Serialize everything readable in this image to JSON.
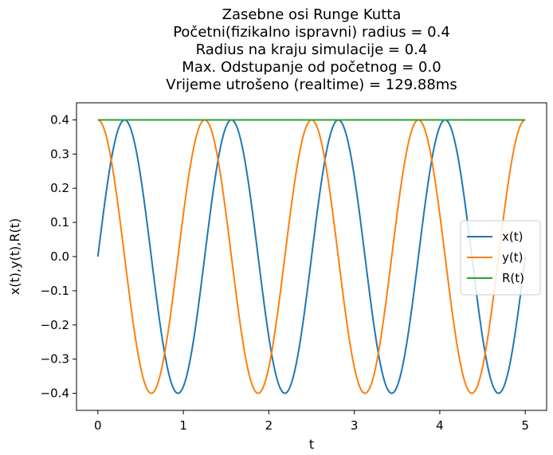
{
  "chart_data": {
    "type": "line",
    "title_lines": [
      "Zasebne osi Runge Kutta",
      "Početni(fizikalno ispravni) radius = 0.4",
      "Radius na kraju simulacije = 0.4",
      "Max. Odstupanje od početnog = 0.0",
      "Vrijeme utrošeno (realtime) = 129.88ms"
    ],
    "xlabel": "t",
    "ylabel": "x(t),y(t),R(t)",
    "xlim": [
      -0.25,
      5.25
    ],
    "ylim": [
      -0.45,
      0.45
    ],
    "xticks": [
      0,
      1,
      2,
      3,
      4,
      5
    ],
    "xtick_labels": [
      "0",
      "1",
      "2",
      "3",
      "4",
      "5"
    ],
    "yticks": [
      0.4,
      0.3,
      0.2,
      0.1,
      0.0,
      -0.1,
      -0.2,
      -0.3,
      -0.4
    ],
    "ytick_labels": [
      "0.4",
      "0.3",
      "0.2",
      "0.1",
      "0.0",
      "−0.1",
      "−0.2",
      "−0.3",
      "−0.4"
    ],
    "grid": false,
    "legend_position": "center-right",
    "sample_t": [
      0.0,
      0.25,
      0.5,
      0.75,
      1.0,
      1.25,
      1.5,
      1.75,
      2.0,
      2.25,
      2.5,
      2.75,
      3.0,
      3.25,
      3.5,
      3.75,
      4.0,
      4.25,
      4.5,
      4.75,
      5.0
    ],
    "series": [
      {
        "name": "x(t)",
        "color": "#1f77b4",
        "amplitude": 0.4,
        "period": 1.25,
        "form": "sin",
        "values": [
          0.0,
          0.38,
          0.235,
          -0.235,
          -0.38,
          0.0,
          0.38,
          0.235,
          -0.235,
          -0.38,
          0.0,
          0.38,
          0.235,
          -0.235,
          -0.38,
          0.0,
          0.38,
          0.235,
          -0.235,
          -0.38,
          0.0
        ]
      },
      {
        "name": "y(t)",
        "color": "#ff7f0e",
        "amplitude": 0.4,
        "period": 1.25,
        "form": "cos",
        "values": [
          0.4,
          0.124,
          -0.324,
          -0.324,
          0.124,
          0.4,
          0.124,
          -0.324,
          -0.324,
          0.124,
          0.4,
          0.124,
          -0.324,
          -0.324,
          0.124,
          0.4,
          0.124,
          -0.324,
          -0.324,
          0.124,
          0.4
        ]
      },
      {
        "name": "R(t)",
        "color": "#2ca02c",
        "form": "const",
        "values": [
          0.4,
          0.4,
          0.4,
          0.4,
          0.4,
          0.4,
          0.4,
          0.4,
          0.4,
          0.4,
          0.4,
          0.4,
          0.4,
          0.4,
          0.4,
          0.4,
          0.4,
          0.4,
          0.4,
          0.4,
          0.4
        ]
      }
    ]
  }
}
